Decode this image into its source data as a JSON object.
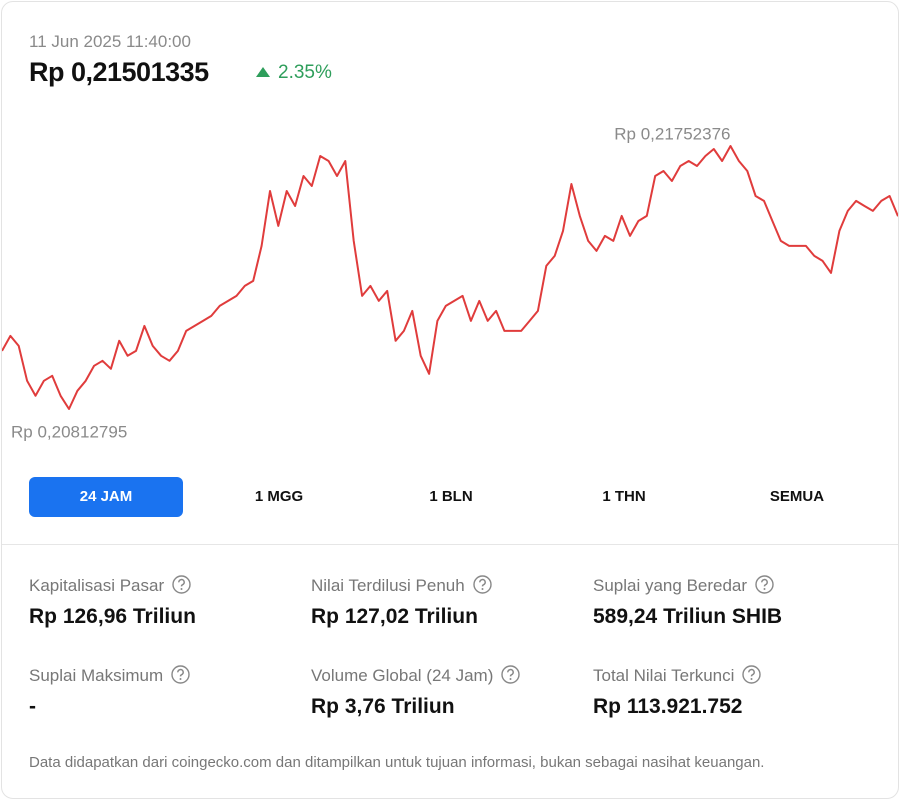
{
  "header": {
    "date": "11 Jun 2025 11:40:00",
    "price": "Rp 0,21501335",
    "change": "2.35%"
  },
  "chart_data": {
    "type": "line",
    "color": "#e03c3c",
    "max_label": "Rp 0,21752376",
    "min_label": "Rp 0,20812795",
    "values": [
      0.210205,
      0.210741,
      0.210384,
      0.209135,
      0.208599,
      0.209135,
      0.209313,
      0.208599,
      0.20812795,
      0.208778,
      0.209135,
      0.20967,
      0.209849,
      0.209563,
      0.210563,
      0.210027,
      0.210205,
      0.211098,
      0.210384,
      0.210027,
      0.209849,
      0.210205,
      0.210919,
      0.211098,
      0.211277,
      0.211455,
      0.211812,
      0.211991,
      0.212169,
      0.212526,
      0.212705,
      0.213954,
      0.215917,
      0.214668,
      0.215917,
      0.215382,
      0.216453,
      0.216096,
      0.217167,
      0.216989,
      0.216453,
      0.216989,
      0.214133,
      0.212169,
      0.212526,
      0.211991,
      0.212348,
      0.210563,
      0.210919,
      0.211634,
      0.210027,
      0.209384,
      0.211277,
      0.211812,
      0.211991,
      0.212169,
      0.211277,
      0.211991,
      0.211277,
      0.211634,
      0.210919,
      0.210919,
      0.210919,
      0.211277,
      0.211634,
      0.21324,
      0.213597,
      0.21449,
      0.216167,
      0.215025,
      0.214133,
      0.213776,
      0.214311,
      0.214133,
      0.215025,
      0.214311,
      0.214846,
      0.215025,
      0.216453,
      0.216632,
      0.216275,
      0.21681,
      0.216989,
      0.21681,
      0.217167,
      0.217417,
      0.216989,
      0.21752376,
      0.216989,
      0.216632,
      0.215739,
      0.215561,
      0.214846,
      0.214133,
      0.213954,
      0.213954,
      0.213954,
      0.213597,
      0.213419,
      0.21299,
      0.21449,
      0.215204,
      0.215561,
      0.215382,
      0.215204,
      0.215561,
      0.215739,
      0.21501335
    ]
  },
  "tabs": [
    "24 JAM",
    "1 MGG",
    "1 BLN",
    "1 THN",
    "SEMUA"
  ],
  "active_tab": 0,
  "stats": [
    {
      "label": "Kapitalisasi Pasar",
      "value": "Rp 126,96 Triliun"
    },
    {
      "label": "Nilai Terdilusi Penuh",
      "value": "Rp 127,02 Triliun"
    },
    {
      "label": "Suplai yang Beredar",
      "value": "589,24 Triliun SHIB"
    },
    {
      "label": "Suplai Maksimum",
      "value": "-"
    },
    {
      "label": "Volume Global (24 Jam)",
      "value": "Rp 3,76 Triliun"
    },
    {
      "label": "Total Nilai Terkunci",
      "value": "Rp 113.921.752"
    }
  ],
  "footer": "Data didapatkan dari coingecko.com dan ditampilkan untuk tujuan informasi, bukan sebagai nasihat keuangan."
}
